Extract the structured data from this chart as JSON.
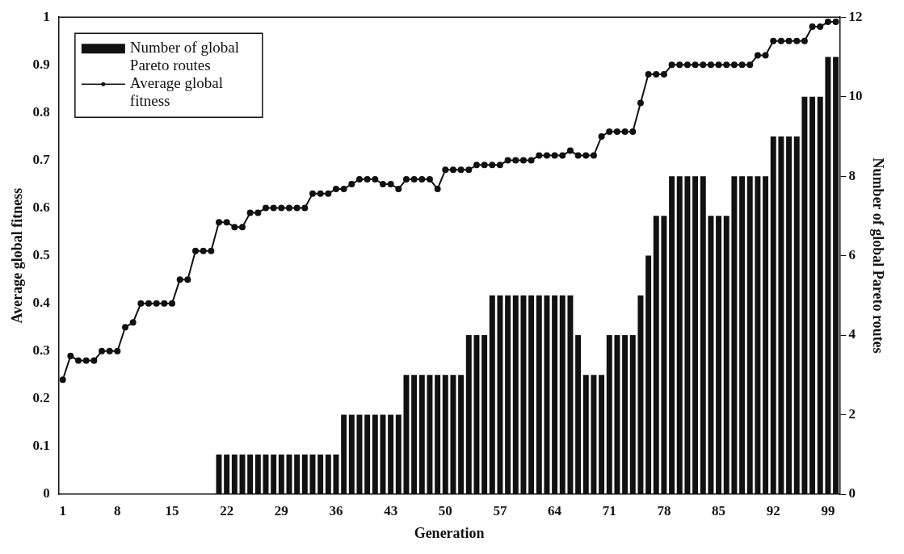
{
  "chart_data": {
    "type": "bar",
    "xlabel": "Generation",
    "ylabel": "Average global fitness",
    "y2label": "Number of global Pareto routes",
    "categories": [
      "1",
      null,
      null,
      null,
      null,
      null,
      null,
      "8",
      null,
      null,
      null,
      null,
      null,
      null,
      "15",
      null,
      null,
      null,
      null,
      null,
      null,
      "22",
      null,
      null,
      null,
      null,
      null,
      null,
      "29",
      null,
      null,
      null,
      null,
      null,
      null,
      "36",
      null,
      null,
      null,
      null,
      null,
      null,
      "43",
      null,
      null,
      null,
      null,
      null,
      null,
      "50",
      null,
      null,
      null,
      null,
      null,
      null,
      "57",
      null,
      null,
      null,
      null,
      null,
      null,
      "64",
      null,
      null,
      null,
      null,
      null,
      null,
      "71",
      null,
      null,
      null,
      null,
      null,
      null,
      "78",
      null,
      null,
      null,
      null,
      null,
      null,
      "85",
      null,
      null,
      null,
      null,
      null,
      null,
      "92",
      null,
      null,
      null,
      null,
      null,
      null,
      "99",
      null
    ],
    "series": [
      {
        "name": "Number of global Pareto routes",
        "axis": "y2",
        "color": "#111111",
        "values": [
          0,
          0,
          0,
          0,
          0,
          0,
          0,
          0,
          0,
          0,
          0,
          0,
          0,
          0,
          0,
          0,
          0,
          0,
          0,
          0,
          1,
          1,
          1,
          1,
          1,
          1,
          1,
          1,
          1,
          1,
          1,
          1,
          1,
          1,
          1,
          1,
          2,
          2,
          2,
          2,
          2,
          2,
          2,
          2,
          3,
          3,
          3,
          3,
          3,
          3,
          3,
          3,
          4,
          4,
          4,
          5,
          5,
          5,
          5,
          5,
          5,
          5,
          5,
          5,
          5,
          5,
          4,
          3,
          3,
          3,
          4,
          4,
          4,
          4,
          5,
          6,
          7,
          7,
          8,
          8,
          8,
          8,
          8,
          7,
          7,
          7,
          8,
          8,
          8,
          8,
          8,
          9,
          9,
          9,
          9,
          10,
          10,
          10,
          11,
          11
        ]
      },
      {
        "name": "Average global fitness",
        "type": "line",
        "axis": "y",
        "color": "#111111",
        "marker": "circle",
        "values": [
          0.24,
          0.29,
          0.28,
          0.28,
          0.28,
          0.3,
          0.3,
          0.3,
          0.35,
          0.36,
          0.4,
          0.4,
          0.4,
          0.4,
          0.4,
          0.45,
          0.45,
          0.51,
          0.51,
          0.51,
          0.57,
          0.57,
          0.56,
          0.56,
          0.59,
          0.59,
          0.6,
          0.6,
          0.6,
          0.6,
          0.6,
          0.6,
          0.63,
          0.63,
          0.63,
          0.64,
          0.64,
          0.65,
          0.66,
          0.66,
          0.66,
          0.65,
          0.65,
          0.64,
          0.66,
          0.66,
          0.66,
          0.66,
          0.64,
          0.68,
          0.68,
          0.68,
          0.68,
          0.69,
          0.69,
          0.69,
          0.69,
          0.7,
          0.7,
          0.7,
          0.7,
          0.71,
          0.71,
          0.71,
          0.71,
          0.72,
          0.71,
          0.71,
          0.71,
          0.75,
          0.76,
          0.76,
          0.76,
          0.76,
          0.82,
          0.88,
          0.88,
          0.88,
          0.9,
          0.9,
          0.9,
          0.9,
          0.9,
          0.9,
          0.9,
          0.9,
          0.9,
          0.9,
          0.9,
          0.92,
          0.92,
          0.95,
          0.95,
          0.95,
          0.95,
          0.95,
          0.98,
          0.98,
          0.99,
          0.99
        ]
      }
    ],
    "ylim": [
      0,
      1
    ],
    "yticks": [
      0,
      0.1,
      0.2,
      0.3,
      0.4,
      0.5,
      0.6,
      0.7,
      0.8,
      0.9,
      1
    ],
    "y2lim": [
      0,
      12
    ],
    "y2ticks": [
      0,
      2,
      4,
      6,
      8,
      10,
      12
    ],
    "legend": "top left"
  }
}
